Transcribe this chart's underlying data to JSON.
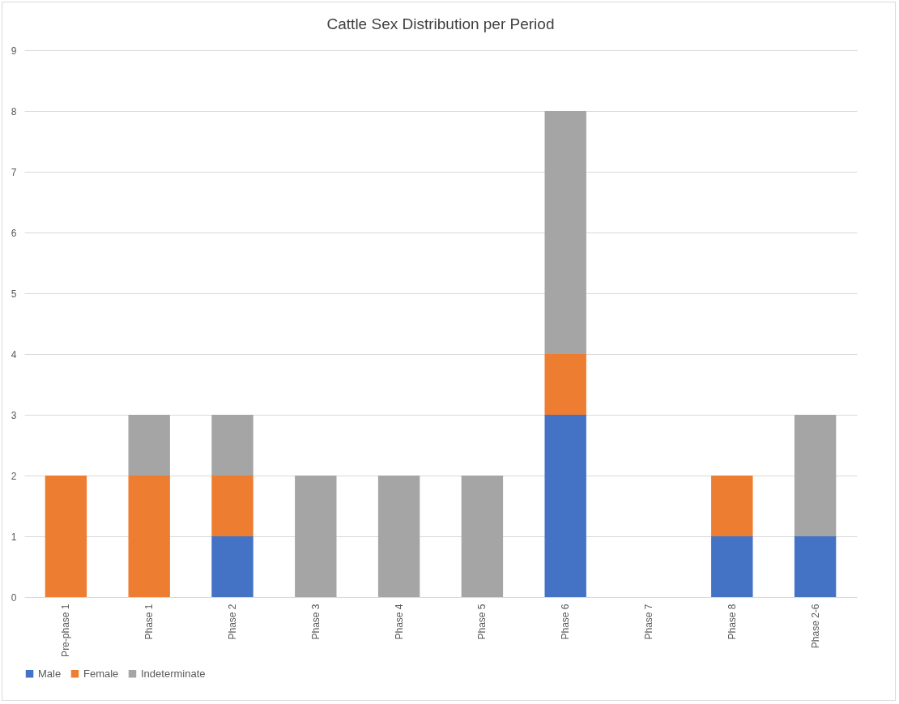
{
  "chart_data": {
    "type": "bar",
    "title": "Cattle Sex Distribution per Period",
    "stacked": true,
    "categories": [
      "Pre-phase 1",
      "Phase 1",
      "Phase 2",
      "Phase 3",
      "Phase 4",
      "Phase 5",
      "Phase 6",
      "Phase 7",
      "Phase 8",
      "Phase 2-6"
    ],
    "series": [
      {
        "name": "Male",
        "color": "#4472c4",
        "values": [
          0,
          0,
          1,
          0,
          0,
          0,
          3,
          0,
          1,
          1
        ]
      },
      {
        "name": "Female",
        "color": "#ed7d31",
        "values": [
          2,
          2,
          1,
          0,
          0,
          0,
          1,
          0,
          1,
          0
        ]
      },
      {
        "name": "Indeterminate",
        "color": "#a5a5a5",
        "values": [
          0,
          1,
          1,
          2,
          2,
          2,
          4,
          0,
          0,
          2
        ]
      }
    ],
    "ylim": [
      0,
      9
    ],
    "yticks": [
      0,
      1,
      2,
      3,
      4,
      5,
      6,
      7,
      8,
      9
    ],
    "grid": "y",
    "legend": "bottom"
  }
}
